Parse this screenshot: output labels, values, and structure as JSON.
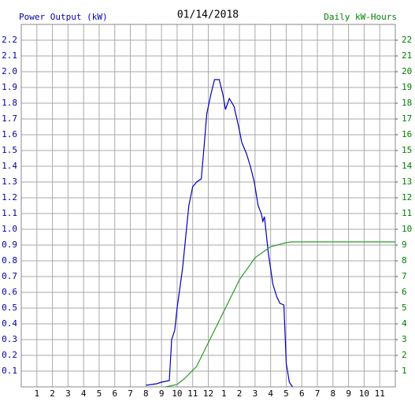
{
  "chart_data": {
    "type": "line",
    "title": "01/14/2018",
    "ylabel": "Power Output (kW)",
    "y2label": "Daily kW-Hours",
    "xlim": [
      0,
      24
    ],
    "xticks": [
      1,
      2,
      3,
      4,
      5,
      6,
      7,
      8,
      9,
      10,
      11,
      12,
      {
        "value": 13,
        "label": "1"
      },
      {
        "value": 14,
        "label": "2"
      },
      {
        "value": 15,
        "label": "3"
      },
      {
        "value": 16,
        "label": "4"
      },
      {
        "value": 17,
        "label": "5"
      },
      {
        "value": 18,
        "label": "6"
      },
      {
        "value": 19,
        "label": "7"
      },
      {
        "value": 20,
        "label": "8"
      },
      {
        "value": 21,
        "label": "9"
      },
      {
        "value": 22,
        "label": "10"
      },
      {
        "value": 23,
        "label": "11"
      }
    ],
    "ylim": [
      0,
      2.3
    ],
    "yticks": [
      0.1,
      0.2,
      0.3,
      0.4,
      0.5,
      0.6,
      0.7,
      0.8,
      0.9,
      {
        "value": 1.0,
        "label": "1.0"
      },
      1.1,
      1.2,
      1.3,
      1.4,
      1.5,
      1.6,
      1.7,
      1.8,
      1.9,
      {
        "value": 2.0,
        "label": "2.0"
      },
      2.1,
      2.2
    ],
    "y2lim": [
      0,
      23
    ],
    "y2ticks": [
      1,
      2,
      3,
      4,
      5,
      6,
      7,
      8,
      9,
      10,
      11,
      12,
      13,
      14,
      15,
      16,
      17,
      18,
      19,
      20,
      21,
      22
    ],
    "grid": true,
    "ycolor": "#0000b0",
    "y2color": "#008000",
    "series": [
      {
        "color": "#0000c0",
        "x": [
          8.0,
          8.7,
          9.0,
          9.5,
          9.65,
          9.85,
          10.0,
          10.35,
          10.75,
          11.0,
          11.25,
          11.55,
          11.75,
          11.9,
          12.15,
          12.4,
          12.7,
          12.95,
          13.1,
          13.35,
          13.65,
          13.95,
          14.15,
          14.45,
          14.7,
          14.95,
          15.2,
          15.4,
          15.5,
          15.6,
          15.85,
          16.15,
          16.4,
          16.6,
          16.85,
          17.0,
          17.2,
          17.4
        ],
        "values": [
          0.01,
          0.02,
          0.03,
          0.04,
          0.3,
          0.36,
          0.5,
          0.75,
          1.15,
          1.27,
          1.3,
          1.32,
          1.55,
          1.73,
          1.85,
          1.95,
          1.95,
          1.85,
          1.76,
          1.83,
          1.78,
          1.65,
          1.55,
          1.48,
          1.4,
          1.3,
          1.15,
          1.1,
          1.05,
          1.08,
          0.85,
          0.65,
          0.57,
          0.53,
          0.52,
          0.15,
          0.03,
          0.0
        ]
      },
      {
        "color": "#2a9a2a",
        "axis": "y2",
        "x": [
          9.25,
          9.5,
          10.0,
          10.5,
          11.25,
          12.0,
          13.0,
          14.0,
          15.0,
          16.0,
          17.0,
          17.3,
          24.0
        ],
        "values": [
          0,
          0.05,
          0.15,
          0.55,
          1.3,
          2.8,
          4.8,
          6.8,
          8.2,
          8.9,
          9.15,
          9.2,
          9.2
        ]
      }
    ]
  }
}
